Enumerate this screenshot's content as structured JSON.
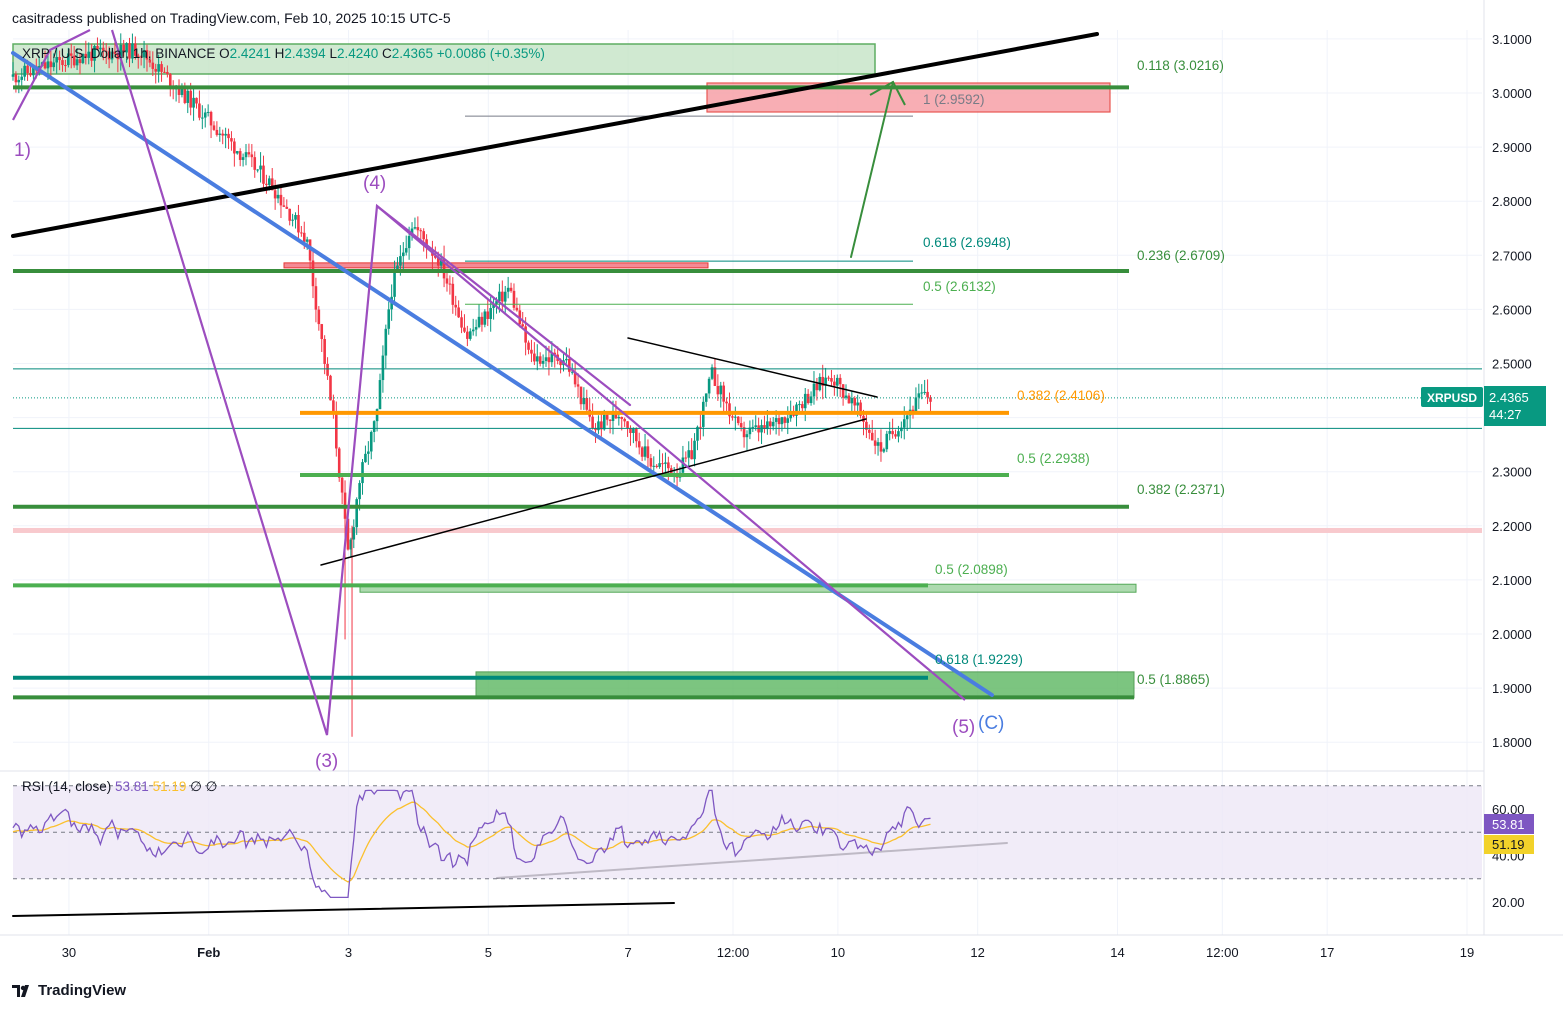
{
  "header": {
    "publisher_line": "casitradess published on TradingView.com, Feb 10, 2025 10:15 UTC-5"
  },
  "brand": {
    "name": "TradingView",
    "icon": "tradingview-logo-icon"
  },
  "symbol_bar": {
    "name": "XRP / U.S. Dollar, 1h, BINANCE",
    "o_label": "O",
    "o": "2.4241",
    "h_label": "H",
    "h": "2.4394",
    "l_label": "L",
    "l": "2.4240",
    "c_label": "C",
    "c": "2.4365",
    "change": "+0.0086 (+0.35%)"
  },
  "price_badge": {
    "symbol": "XRPUSD",
    "price": "2.4365",
    "countdown": "44:27",
    "color": "#089981"
  },
  "chart_data": [
    {
      "type": "candlestick",
      "title": "XRP / U.S. Dollar, 1h, BINANCE",
      "ylim": [
        1.76,
        3.12
      ],
      "y_ticks": [
        "3.1000",
        "3.0000",
        "2.9000",
        "2.8000",
        "2.7000",
        "2.6000",
        "2.5000",
        "2.4000",
        "2.3000",
        "2.2000",
        "2.1000",
        "2.0000",
        "1.9000",
        "1.8000"
      ],
      "x_ticks": [
        "30",
        "Feb",
        "3",
        "5",
        "7",
        "12:00",
        "10",
        "12",
        "14",
        "12:00",
        "17",
        "19"
      ],
      "x_range_days": [
        29.2,
        49.9
      ],
      "x_tick_values": [
        30,
        32,
        34,
        36,
        38,
        39.5,
        41,
        43,
        45,
        46.5,
        48,
        50
      ],
      "anchors": [
        {
          "t": 29.2,
          "p": 3.03
        },
        {
          "t": 30.2,
          "p": 3.07
        },
        {
          "t": 31.0,
          "p": 3.08
        },
        {
          "t": 31.7,
          "p": 2.99
        },
        {
          "t": 32.3,
          "p": 2.91
        },
        {
          "t": 32.9,
          "p": 2.83
        },
        {
          "t": 33.4,
          "p": 2.73
        },
        {
          "t": 33.8,
          "p": 2.38
        },
        {
          "t": 34.0,
          "p": 2.14
        },
        {
          "t": 34.15,
          "p": 2.28
        },
        {
          "t": 34.4,
          "p": 2.4
        },
        {
          "t": 34.6,
          "p": 2.63
        },
        {
          "t": 34.9,
          "p": 2.76
        },
        {
          "t": 35.3,
          "p": 2.69
        },
        {
          "t": 35.7,
          "p": 2.55
        },
        {
          "t": 36.3,
          "p": 2.64
        },
        {
          "t": 36.6,
          "p": 2.51
        },
        {
          "t": 37.1,
          "p": 2.51
        },
        {
          "t": 37.5,
          "p": 2.38
        },
        {
          "t": 37.9,
          "p": 2.41
        },
        {
          "t": 38.3,
          "p": 2.32
        },
        {
          "t": 38.7,
          "p": 2.3
        },
        {
          "t": 38.9,
          "p": 2.33
        },
        {
          "t": 39.2,
          "p": 2.48
        },
        {
          "t": 39.6,
          "p": 2.37
        },
        {
          "t": 40.0,
          "p": 2.38
        },
        {
          "t": 40.4,
          "p": 2.42
        },
        {
          "t": 40.9,
          "p": 2.48
        },
        {
          "t": 41.3,
          "p": 2.41
        },
        {
          "t": 41.6,
          "p": 2.34
        },
        {
          "t": 42.0,
          "p": 2.41
        },
        {
          "t": 42.2,
          "p": 2.44
        },
        {
          "t": 42.35,
          "p": 2.4365
        }
      ],
      "last_price": 2.4365,
      "fib_levels": [
        {
          "label": "0.118 (3.0216)",
          "price": 3.0216,
          "color": "#388e3c"
        },
        {
          "label": "1 (2.9592)",
          "price": 2.9592,
          "color": "#787b86"
        },
        {
          "label": "0.618 (2.6948)",
          "price": 2.6948,
          "color": "#00897b"
        },
        {
          "label": "0.236 (2.6709)",
          "price": 2.6709,
          "color": "#388e3c"
        },
        {
          "label": "0.5 (2.6132)",
          "price": 2.6132,
          "color": "#4caf50"
        },
        {
          "label": "0.382 (2.4106)",
          "price": 2.4106,
          "color": "#ff9800"
        },
        {
          "label": "0.5 (2.2938)",
          "price": 2.2938,
          "color": "#4caf50"
        },
        {
          "label": "0.382 (2.2371)",
          "price": 2.2371,
          "color": "#388e3c"
        },
        {
          "label": "0.5 (2.0898)",
          "price": 2.0898,
          "color": "#4caf50"
        },
        {
          "label": "0.618 (1.9229)",
          "price": 1.9229,
          "color": "#00897b"
        },
        {
          "label": "0.5 (1.8865)",
          "price": 1.8865,
          "color": "#388e3c"
        }
      ],
      "wave_labels": [
        "1)",
        "(3)",
        "(4)",
        "(5)",
        "(C)"
      ],
      "colors": {
        "up": "#089981",
        "down": "#f23645",
        "blue_trend": "#4a7de0",
        "purple": "#9c4dbf",
        "black": "#000000",
        "green": "#388e3c",
        "orange": "#ff9800",
        "red_zone": "#f7a1a8",
        "green_zone": "#66bb6a"
      }
    },
    {
      "type": "line",
      "title": "RSI (14, close)",
      "rsi_value": "53.81",
      "ma_value": "51.19",
      "extras": "∅ ∅",
      "ylim": [
        15,
        75
      ],
      "y_ticks": [
        "60.00",
        "40.00",
        "20.00"
      ],
      "band": [
        30,
        70
      ],
      "value_color": "#7e57c2",
      "ma_color": "#fbc02d",
      "value_badge_color": "#7e57c2",
      "ma_badge_color": "#f2d22a"
    }
  ]
}
